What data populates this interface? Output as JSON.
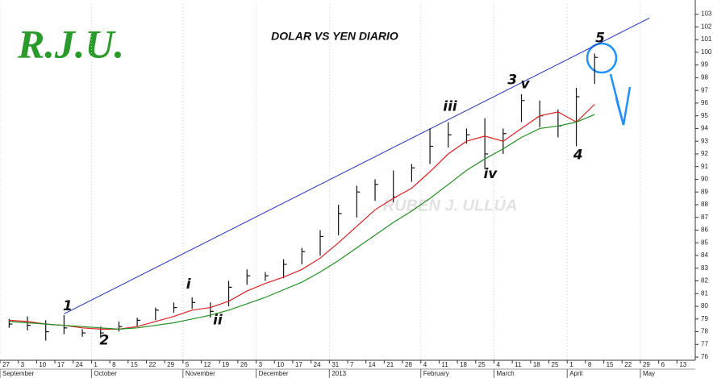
{
  "chart_data": {
    "type": "ohlc",
    "logo": "R.J.U.",
    "title": "DOLAR VS YEN DIARIO",
    "watermark": "RUBEN J. ULLÚA",
    "categories": [
      "27",
      "3",
      "10",
      "17",
      "24",
      "1",
      "8",
      "15",
      "22",
      "29",
      "5",
      "12",
      "19",
      "26",
      "3",
      "10",
      "17",
      "24",
      "31",
      "7",
      "14",
      "21",
      "28",
      "4",
      "11",
      "18",
      "25",
      "4",
      "11",
      "18",
      "25",
      "1",
      "8",
      "15",
      "22",
      "29",
      "6",
      "13"
    ],
    "months": [
      {
        "label": "September",
        "index": 0
      },
      {
        "label": "October",
        "index": 5
      },
      {
        "label": "November",
        "index": 10
      },
      {
        "label": "December",
        "index": 14
      },
      {
        "label": "2013",
        "index": 18
      },
      {
        "label": "February",
        "index": 23
      },
      {
        "label": "March",
        "index": 27
      },
      {
        "label": "April",
        "index": 31
      },
      {
        "label": "May",
        "index": 35
      }
    ],
    "color": "#111111",
    "high": [
      79.0,
      79.2,
      78.9,
      79.3,
      78.2,
      78.4,
      78.8,
      79.1,
      79.9,
      80.3,
      80.7,
      80.3,
      82.0,
      82.9,
      82.7,
      83.7,
      84.6,
      86.0,
      88.0,
      89.5,
      90.0,
      90.7,
      91.2,
      94.0,
      94.5,
      94.0,
      94.8,
      94.0,
      96.7,
      96.2,
      95.5,
      97.2,
      99.9,
      null,
      null,
      null,
      null,
      null
    ],
    "low": [
      78.3,
      78.1,
      77.3,
      77.8,
      77.6,
      77.5,
      78.0,
      78.4,
      78.9,
      79.5,
      79.8,
      79.1,
      80.0,
      81.7,
      82.0,
      82.2,
      83.3,
      84.0,
      85.6,
      87.0,
      88.3,
      88.2,
      89.8,
      91.2,
      92.5,
      92.8,
      90.8,
      92.0,
      94.5,
      94.1,
      93.3,
      92.6,
      97.5,
      null,
      null,
      null,
      null,
      null
    ],
    "close": [
      78.6,
      78.5,
      78.0,
      78.3,
      77.9,
      77.9,
      78.4,
      78.9,
      79.7,
      79.9,
      80.3,
      79.6,
      81.5,
      82.4,
      82.4,
      83.3,
      84.3,
      85.5,
      87.3,
      89.0,
      89.6,
      88.6,
      90.9,
      92.6,
      93.5,
      93.5,
      92.0,
      93.6,
      96.2,
      95.0,
      94.2,
      96.5,
      99.6,
      null,
      null,
      null,
      null,
      null
    ],
    "series": [
      {
        "color": "#e02020",
        "values": [
          78.9,
          78.8,
          78.6,
          78.5,
          78.3,
          78.2,
          78.2,
          78.4,
          78.8,
          79.2,
          79.7,
          79.9,
          80.4,
          81.2,
          81.8,
          82.3,
          82.9,
          83.8,
          85.0,
          86.3,
          87.6,
          88.5,
          89.3,
          90.6,
          92.0,
          93.0,
          93.4,
          93.0,
          94.0,
          95.0,
          95.3,
          94.5,
          95.9,
          null,
          null,
          null,
          null,
          null
        ]
      },
      {
        "color": "#209020",
        "values": [
          78.8,
          78.7,
          78.6,
          78.5,
          78.4,
          78.3,
          78.2,
          78.3,
          78.5,
          78.7,
          79.0,
          79.3,
          79.7,
          80.2,
          80.7,
          81.3,
          81.9,
          82.7,
          83.6,
          84.6,
          85.6,
          86.6,
          87.5,
          88.5,
          89.6,
          90.7,
          91.6,
          92.4,
          93.3,
          94.0,
          94.2,
          94.5,
          95.1,
          null,
          null,
          null,
          null,
          null
        ]
      }
    ],
    "trendline": {
      "color": "#2030c8",
      "x": [
        3,
        35
      ],
      "y": [
        79.4,
        102.7
      ]
    },
    "annotations": [
      {
        "text": "1",
        "x": 3.2,
        "y": 80.0
      },
      {
        "text": "2",
        "x": 5.2,
        "y": 77.3
      },
      {
        "text": "i",
        "x": 9.8,
        "y": 81.7
      },
      {
        "text": "ii",
        "x": 11.4,
        "y": 78.9
      },
      {
        "text": "iii",
        "x": 24.1,
        "y": 95.7
      },
      {
        "text": "iv",
        "x": 26.3,
        "y": 90.4
      },
      {
        "text": "3",
        "x": 27.5,
        "y": 97.8
      },
      {
        "text": "v",
        "x": 28.2,
        "y": 97.5
      },
      {
        "text": "4",
        "x": 31.1,
        "y": 91.9
      },
      {
        "text": "5",
        "x": 32.3,
        "y": 101.1
      }
    ],
    "ylim": [
      75.75,
      103.8
    ],
    "yticks": [
      76,
      77,
      78,
      79,
      80,
      81,
      82,
      83,
      84,
      85,
      86,
      87,
      88,
      89,
      90,
      91,
      92,
      93,
      94,
      95,
      96,
      97,
      98,
      99,
      100,
      101,
      102,
      103
    ],
    "grid": false
  }
}
